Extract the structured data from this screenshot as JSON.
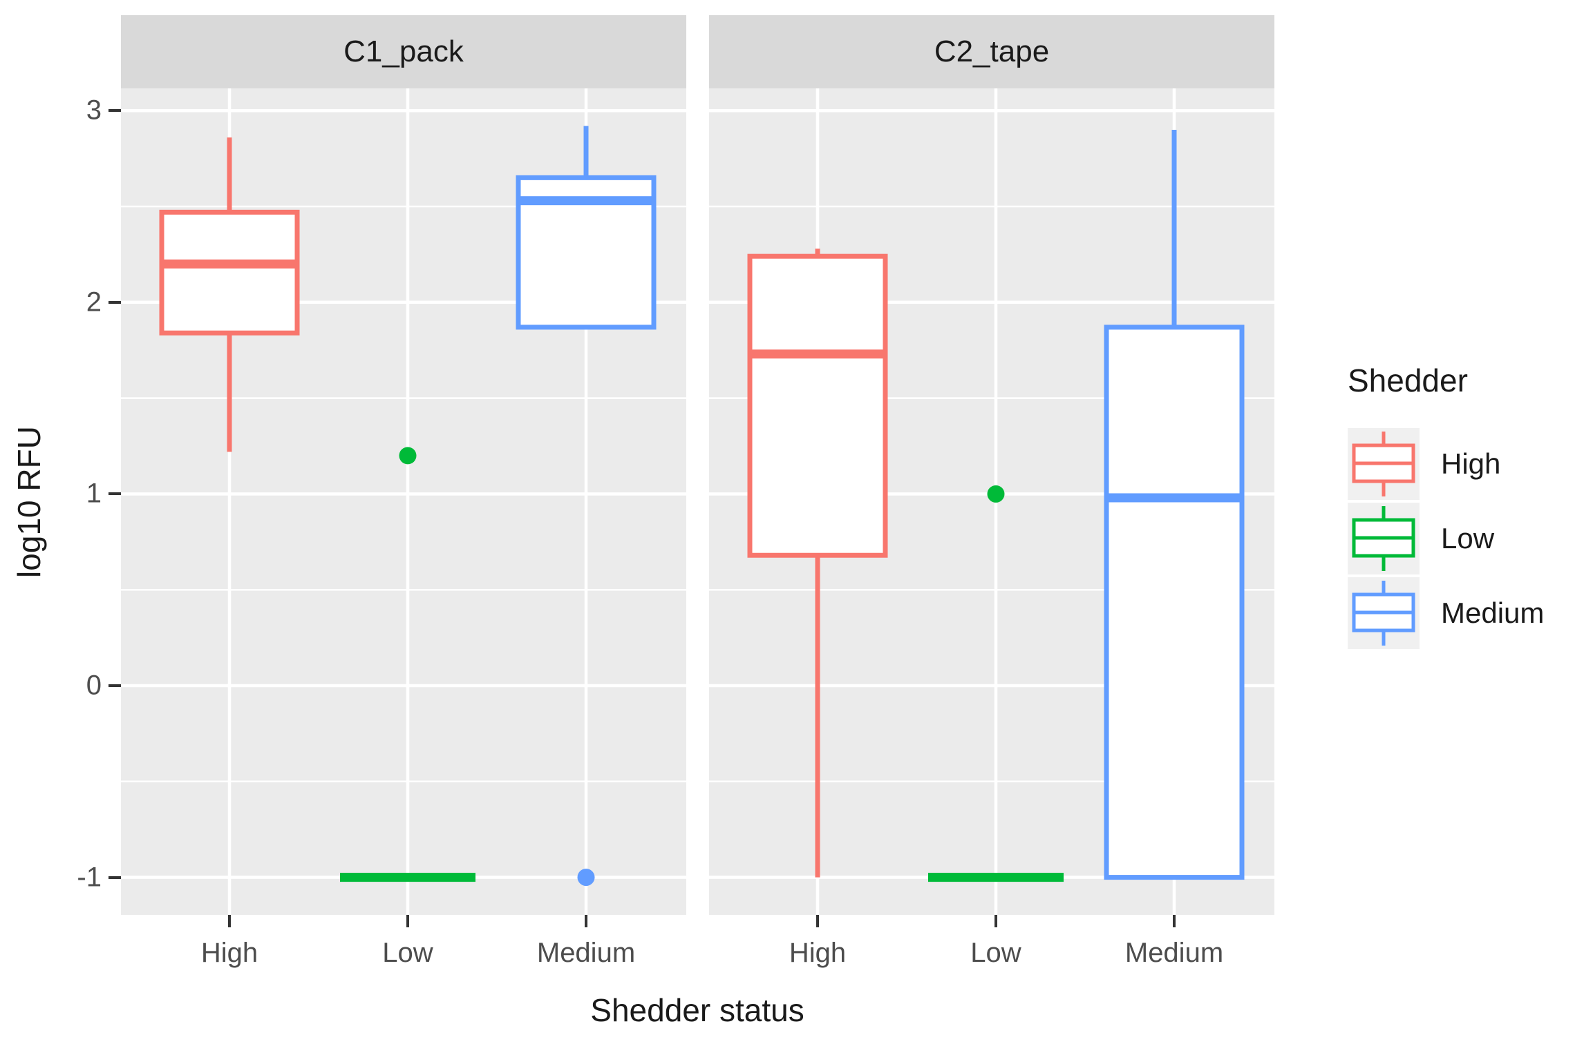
{
  "y_axis": {
    "title": "log10 RFU",
    "tick_values": [
      3,
      2,
      1,
      0,
      -1
    ],
    "tick_labels": [
      "3",
      "2",
      "1",
      "0",
      "-1"
    ],
    "minor_values": [
      2.5,
      1.5,
      0.5,
      -0.5
    ]
  },
  "x_axis": {
    "title": "Shedder status",
    "categories": [
      "High",
      "Low",
      "Medium"
    ]
  },
  "legend": {
    "title": "Shedder",
    "entries": [
      {
        "label": "High",
        "color": "#F8766D"
      },
      {
        "label": "Low",
        "color": "#00BA38"
      },
      {
        "label": "Medium",
        "color": "#619CFF"
      }
    ]
  },
  "colors": {
    "panel_bg": "#EBEBEB",
    "strip_bg": "#D9D9D9",
    "grid": "#FFFFFF",
    "tick": "#333333",
    "tick_label": "#4D4D4D",
    "title_text": "#1A1A1A",
    "key_bg": "#F0F0F0",
    "box_fill": "#FFFFFF"
  },
  "chart_data": {
    "type": "boxplot",
    "title": "",
    "xlabel": "Shedder status",
    "ylabel": "log10 RFU",
    "ylim": [
      -1.196,
      3.116
    ],
    "grid": true,
    "legend_position": "right",
    "facets": [
      {
        "label": "C1_pack",
        "boxes": [
          {
            "category": "High",
            "group": "High",
            "color": "#F8766D",
            "whisker_low": 1.22,
            "q1": 1.84,
            "median": 2.2,
            "q3": 2.47,
            "whisker_high": 2.86,
            "outliers": []
          },
          {
            "category": "Low",
            "group": "Low",
            "color": "#00BA38",
            "whisker_low": -1,
            "q1": -1,
            "median": -1,
            "q3": -1,
            "whisker_high": -1,
            "outliers": [
              1.2
            ]
          },
          {
            "category": "Medium",
            "group": "Medium",
            "color": "#619CFF",
            "whisker_low": 1.87,
            "q1": 1.87,
            "median": 2.53,
            "q3": 2.65,
            "whisker_high": 2.92,
            "outliers": [
              -1
            ]
          }
        ]
      },
      {
        "label": "C2_tape",
        "boxes": [
          {
            "category": "High",
            "group": "High",
            "color": "#F8766D",
            "whisker_low": -1,
            "q1": 0.68,
            "median": 1.73,
            "q3": 2.24,
            "whisker_high": 2.28,
            "outliers": []
          },
          {
            "category": "Low",
            "group": "Low",
            "color": "#00BA38",
            "whisker_low": -1,
            "q1": -1,
            "median": -1,
            "q3": -1,
            "whisker_high": -1,
            "outliers": [
              1.0
            ]
          },
          {
            "category": "Medium",
            "group": "Medium",
            "color": "#619CFF",
            "whisker_low": -1,
            "q1": -1,
            "median": 0.98,
            "q3": 1.87,
            "whisker_high": 2.9,
            "outliers": []
          }
        ]
      }
    ]
  }
}
